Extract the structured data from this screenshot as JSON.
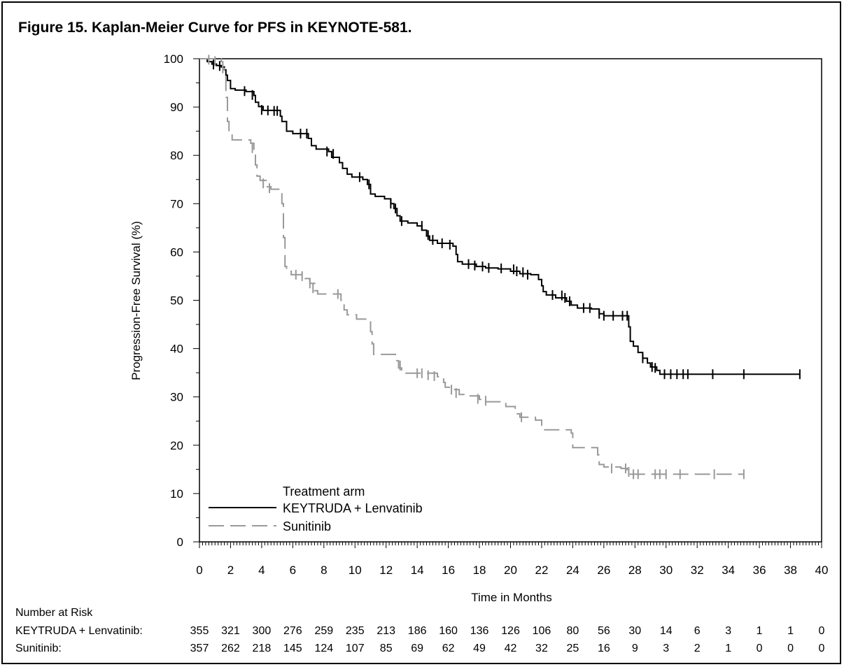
{
  "title": "Figure 15. Kaplan-Meier Curve for PFS in KEYNOTE-581.",
  "chart_data": {
    "type": "line",
    "step": true,
    "xlabel": "Time in Months",
    "ylabel": "Progression-Free Survival (%)",
    "xlim": [
      0,
      40
    ],
    "ylim": [
      0,
      100
    ],
    "xticks": [
      0,
      2,
      4,
      6,
      8,
      10,
      12,
      14,
      16,
      18,
      20,
      22,
      24,
      26,
      28,
      30,
      32,
      34,
      36,
      38,
      40
    ],
    "yticks": [
      0,
      10,
      20,
      30,
      40,
      50,
      60,
      70,
      80,
      90,
      100
    ],
    "grid": false,
    "legend": {
      "title": "Treatment arm",
      "placement": "bottom-left"
    },
    "series": [
      {
        "name": "KEYTRUDA + Lenvatinib",
        "color": "#000000",
        "dash": "solid",
        "points": [
          [
            0,
            100
          ],
          [
            0.5,
            99.4
          ],
          [
            0.8,
            98.9
          ],
          [
            1.1,
            98.6
          ],
          [
            1.4,
            98.3
          ],
          [
            1.6,
            97.7
          ],
          [
            1.7,
            96.6
          ],
          [
            1.8,
            95.5
          ],
          [
            2.0,
            93.8
          ],
          [
            2.3,
            93.5
          ],
          [
            3.0,
            93.2
          ],
          [
            3.5,
            92.4
          ],
          [
            3.6,
            91.0
          ],
          [
            3.8,
            90.1
          ],
          [
            4.1,
            89.3
          ],
          [
            5.2,
            88.1
          ],
          [
            5.3,
            87.0
          ],
          [
            5.6,
            85.0
          ],
          [
            6.0,
            84.5
          ],
          [
            7.0,
            83.5
          ],
          [
            7.2,
            82.0
          ],
          [
            7.5,
            81.3
          ],
          [
            8.3,
            80.8
          ],
          [
            8.5,
            79.6
          ],
          [
            9.0,
            78.5
          ],
          [
            9.2,
            77.3
          ],
          [
            9.5,
            76.1
          ],
          [
            9.8,
            75.5
          ],
          [
            10.5,
            75.0
          ],
          [
            10.8,
            74.0
          ],
          [
            11.0,
            72.0
          ],
          [
            11.3,
            71.5
          ],
          [
            11.9,
            71.0
          ],
          [
            12.3,
            70.0
          ],
          [
            12.5,
            69.0
          ],
          [
            12.7,
            67.5
          ],
          [
            12.9,
            66.4
          ],
          [
            13.4,
            66.0
          ],
          [
            14.0,
            65.4
          ],
          [
            14.3,
            64.5
          ],
          [
            14.6,
            63.3
          ],
          [
            14.8,
            62.4
          ],
          [
            15.3,
            61.8
          ],
          [
            16.3,
            61.2
          ],
          [
            16.5,
            59.5
          ],
          [
            16.6,
            58.0
          ],
          [
            16.9,
            57.5
          ],
          [
            17.8,
            57.0
          ],
          [
            18.4,
            56.7
          ],
          [
            19.2,
            56.5
          ],
          [
            20.0,
            56.0
          ],
          [
            20.6,
            55.5
          ],
          [
            21.3,
            55.3
          ],
          [
            21.8,
            54.3
          ],
          [
            22.0,
            53.0
          ],
          [
            22.1,
            51.8
          ],
          [
            22.3,
            51.1
          ],
          [
            22.9,
            50.5
          ],
          [
            23.6,
            49.8
          ],
          [
            23.9,
            49.0
          ],
          [
            24.3,
            48.4
          ],
          [
            25.2,
            48.2
          ],
          [
            25.7,
            47.2
          ],
          [
            26.0,
            46.8
          ],
          [
            27.4,
            46.8
          ],
          [
            27.6,
            44.5
          ],
          [
            27.7,
            41.5
          ],
          [
            27.9,
            40.5
          ],
          [
            28.2,
            39.2
          ],
          [
            28.5,
            38.0
          ],
          [
            28.8,
            37.0
          ],
          [
            29.0,
            36.2
          ],
          [
            29.4,
            35.5
          ],
          [
            29.6,
            34.7
          ],
          [
            38.6,
            34.7
          ]
        ],
        "censors": [
          [
            0.9,
            98.8
          ],
          [
            1.3,
            98.5
          ],
          [
            2.9,
            93.3
          ],
          [
            3.4,
            92.5
          ],
          [
            4.0,
            89.4
          ],
          [
            4.4,
            89.3
          ],
          [
            4.8,
            89.2
          ],
          [
            5.0,
            89.2
          ],
          [
            6.5,
            84.5
          ],
          [
            6.9,
            84.5
          ],
          [
            8.2,
            80.8
          ],
          [
            8.6,
            80.3
          ],
          [
            10.3,
            75.5
          ],
          [
            10.9,
            74.0
          ],
          [
            12.3,
            70.0
          ],
          [
            12.6,
            69.0
          ],
          [
            13.0,
            66.4
          ],
          [
            14.3,
            65.4
          ],
          [
            14.7,
            63.5
          ],
          [
            15.0,
            62.5
          ],
          [
            15.6,
            61.8
          ],
          [
            16.1,
            61.5
          ],
          [
            17.3,
            57.5
          ],
          [
            17.7,
            57.2
          ],
          [
            18.2,
            57.0
          ],
          [
            18.6,
            56.7
          ],
          [
            19.4,
            56.6
          ],
          [
            20.2,
            56.4
          ],
          [
            20.4,
            56.0
          ],
          [
            20.8,
            55.8
          ],
          [
            21.1,
            55.3
          ],
          [
            22.7,
            51.1
          ],
          [
            23.3,
            51.0
          ],
          [
            23.5,
            50.5
          ],
          [
            23.8,
            49.8
          ],
          [
            24.7,
            48.4
          ],
          [
            25.1,
            48.4
          ],
          [
            25.7,
            47.2
          ],
          [
            26.0,
            46.8
          ],
          [
            26.6,
            46.8
          ],
          [
            27.2,
            46.8
          ],
          [
            27.5,
            46.8
          ],
          [
            28.5,
            38.0
          ],
          [
            29.1,
            36.2
          ],
          [
            29.3,
            36.0
          ],
          [
            29.9,
            34.7
          ],
          [
            30.3,
            34.7
          ],
          [
            30.7,
            34.7
          ],
          [
            31.1,
            34.7
          ],
          [
            31.4,
            34.7
          ],
          [
            33.0,
            34.7
          ],
          [
            35.0,
            34.7
          ],
          [
            38.6,
            34.7
          ]
        ]
      },
      {
        "name": "Sunitinib",
        "color": "#999999",
        "dash": "dashed",
        "points": [
          [
            0,
            100
          ],
          [
            1.4,
            99.4
          ],
          [
            1.5,
            98.0
          ],
          [
            1.6,
            96.5
          ],
          [
            1.7,
            92.0
          ],
          [
            1.8,
            87.0
          ],
          [
            1.9,
            84.5
          ],
          [
            2.1,
            83.2
          ],
          [
            3.3,
            82.5
          ],
          [
            3.5,
            80.5
          ],
          [
            3.6,
            78.0
          ],
          [
            3.7,
            75.7
          ],
          [
            3.9,
            74.8
          ],
          [
            4.3,
            73.5
          ],
          [
            4.6,
            73.0
          ],
          [
            5.2,
            72.5
          ],
          [
            5.3,
            70.0
          ],
          [
            5.4,
            63.0
          ],
          [
            5.5,
            57.0
          ],
          [
            5.6,
            56.0
          ],
          [
            5.9,
            55.3
          ],
          [
            6.8,
            54.5
          ],
          [
            7.1,
            53.5
          ],
          [
            7.4,
            52.0
          ],
          [
            7.6,
            51.3
          ],
          [
            9.1,
            50.0
          ],
          [
            9.3,
            48.0
          ],
          [
            9.5,
            47.0
          ],
          [
            10.1,
            46.1
          ],
          [
            11.0,
            43.5
          ],
          [
            11.1,
            41.0
          ],
          [
            11.2,
            38.8
          ],
          [
            12.3,
            38.8
          ],
          [
            12.6,
            37.5
          ],
          [
            12.8,
            36.0
          ],
          [
            13.0,
            34.9
          ],
          [
            15.3,
            34.2
          ],
          [
            15.7,
            33.0
          ],
          [
            15.8,
            32.0
          ],
          [
            16.3,
            31.5
          ],
          [
            16.7,
            30.5
          ],
          [
            17.3,
            30.2
          ],
          [
            18.0,
            29.5
          ],
          [
            18.3,
            29.0
          ],
          [
            19.7,
            28.0
          ],
          [
            20.3,
            26.5
          ],
          [
            20.6,
            25.8
          ],
          [
            21.6,
            25.2
          ],
          [
            22.0,
            23.2
          ],
          [
            23.9,
            22.5
          ],
          [
            24.0,
            19.5
          ],
          [
            25.6,
            18.0
          ],
          [
            25.7,
            16.0
          ],
          [
            26.0,
            15.5
          ],
          [
            27.1,
            15.2
          ],
          [
            27.5,
            14.5
          ],
          [
            27.7,
            14.0
          ],
          [
            35.0,
            14.0
          ]
        ],
        "censors": [
          [
            0.6,
            99.8
          ],
          [
            1.0,
            99.5
          ],
          [
            1.5,
            98.0
          ],
          [
            3.4,
            81.5
          ],
          [
            4.1,
            74.2
          ],
          [
            4.5,
            73.2
          ],
          [
            6.2,
            55.3
          ],
          [
            6.6,
            55.0
          ],
          [
            7.1,
            53.5
          ],
          [
            7.3,
            52.5
          ],
          [
            8.9,
            51.3
          ],
          [
            12.9,
            36.5
          ],
          [
            14.0,
            34.9
          ],
          [
            14.3,
            34.9
          ],
          [
            14.7,
            34.5
          ],
          [
            15.1,
            34.3
          ],
          [
            16.2,
            31.5
          ],
          [
            16.5,
            30.8
          ],
          [
            17.9,
            29.6
          ],
          [
            18.4,
            29.2
          ],
          [
            20.7,
            25.8
          ],
          [
            26.5,
            15.2
          ],
          [
            27.4,
            15.2
          ],
          [
            27.6,
            14.5
          ],
          [
            27.9,
            14.0
          ],
          [
            28.2,
            14.0
          ],
          [
            29.3,
            14.0
          ],
          [
            29.6,
            14.0
          ],
          [
            30.0,
            14.0
          ],
          [
            30.9,
            14.0
          ],
          [
            33.1,
            14.0
          ],
          [
            35.0,
            14.0
          ]
        ]
      }
    ],
    "risk_table": {
      "title": "Number at Risk",
      "times": [
        0,
        2,
        4,
        6,
        8,
        10,
        12,
        14,
        16,
        18,
        20,
        22,
        24,
        26,
        28,
        30,
        32,
        34,
        36,
        38,
        40
      ],
      "rows": [
        {
          "label": "KEYTRUDA + Lenvatinib:",
          "counts": [
            "355",
            "321",
            "300",
            "276",
            "259",
            "235",
            "213",
            "186",
            "160",
            "136",
            "126",
            "106",
            "80",
            "56",
            "30",
            "14",
            "6",
            "3",
            "1",
            "1",
            "0"
          ]
        },
        {
          "label": "Sunitinib:",
          "counts": [
            "357",
            "262",
            "218",
            "145",
            "124",
            "107",
            "85",
            "69",
            "62",
            "49",
            "42",
            "32",
            "25",
            "16",
            "9",
            "3",
            "2",
            "1",
            "0",
            "0",
            "0"
          ]
        }
      ]
    }
  }
}
